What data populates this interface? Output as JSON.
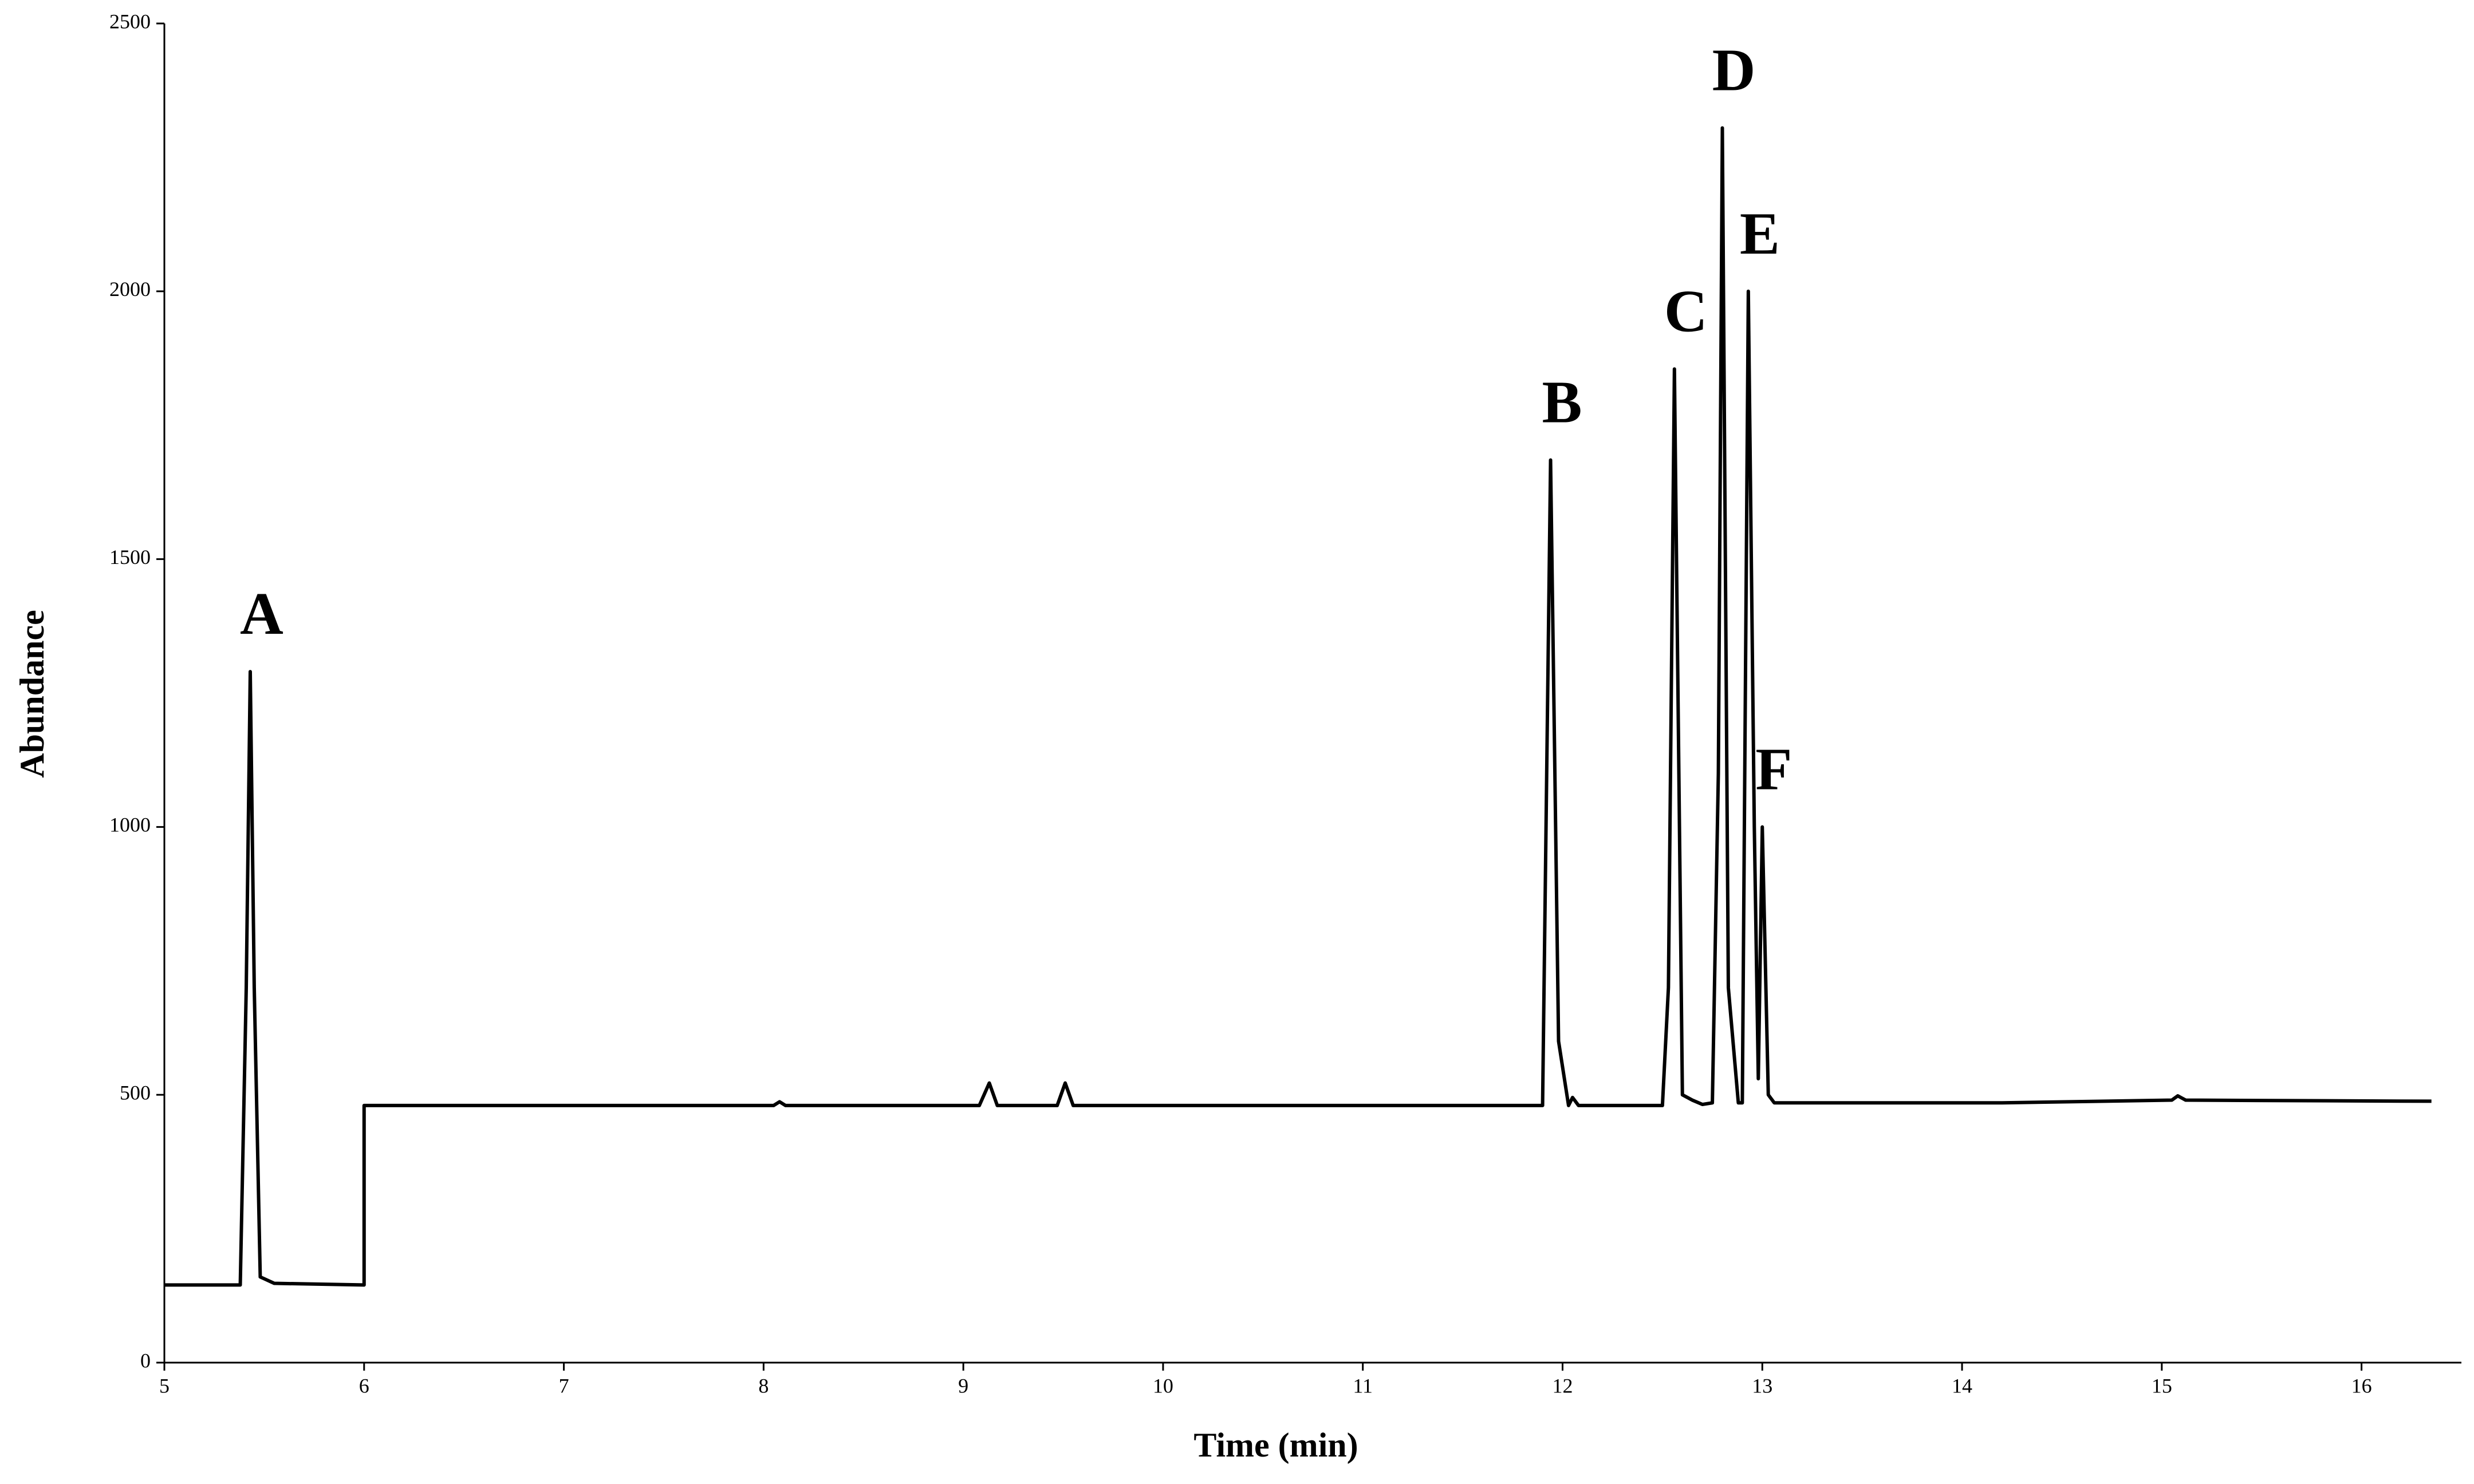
{
  "chart_data": {
    "type": "line",
    "x_label": "Time (min)",
    "y_label": "Abundance",
    "x": [
      5.0,
      5.38,
      5.41,
      5.43,
      5.45,
      5.48,
      5.55,
      6.0,
      6.0,
      8.05,
      8.08,
      8.11,
      9.08,
      9.13,
      9.17,
      9.47,
      9.51,
      9.55,
      11.9,
      11.94,
      11.98,
      12.03,
      12.05,
      12.08,
      12.5,
      12.53,
      12.56,
      12.6,
      12.65,
      12.7,
      12.75,
      12.78,
      12.8,
      12.83,
      12.88,
      12.9,
      12.93,
      12.96,
      12.98,
      13.0,
      13.03,
      13.06,
      14.2,
      15.05,
      15.08,
      15.12,
      16.35
    ],
    "series": [
      {
        "color": "#000000",
        "values": [
          145,
          145,
          700,
          1290,
          700,
          160,
          148,
          145,
          480,
          480,
          487,
          480,
          480,
          522,
          480,
          480,
          522,
          480,
          480,
          1685,
          600,
          480,
          495,
          480,
          480,
          700,
          1855,
          500,
          490,
          482,
          485,
          1100,
          2305,
          700,
          485,
          485,
          2000,
          1000,
          530,
          1000,
          500,
          485,
          485,
          490,
          498,
          490,
          488
        ]
      }
    ],
    "annotations": [
      {
        "text": "A",
        "x": 5.43,
        "y": 1290
      },
      {
        "text": "B",
        "x": 11.94,
        "y": 1685
      },
      {
        "text": "C",
        "x": 12.56,
        "y": 1855
      },
      {
        "text": "D",
        "x": 12.8,
        "y": 2305
      },
      {
        "text": "E",
        "x": 12.93,
        "y": 2000
      },
      {
        "text": "F",
        "x": 13.0,
        "y": 1000
      }
    ],
    "xlim": [
      5,
      16.5
    ],
    "xticks": [
      5,
      6,
      7,
      8,
      9,
      10,
      11,
      12,
      13,
      14,
      15,
      16
    ],
    "ylim": [
      0,
      2500
    ],
    "yticks": [
      0,
      500,
      1000,
      1500,
      2000,
      2500
    ],
    "grid": false
  }
}
